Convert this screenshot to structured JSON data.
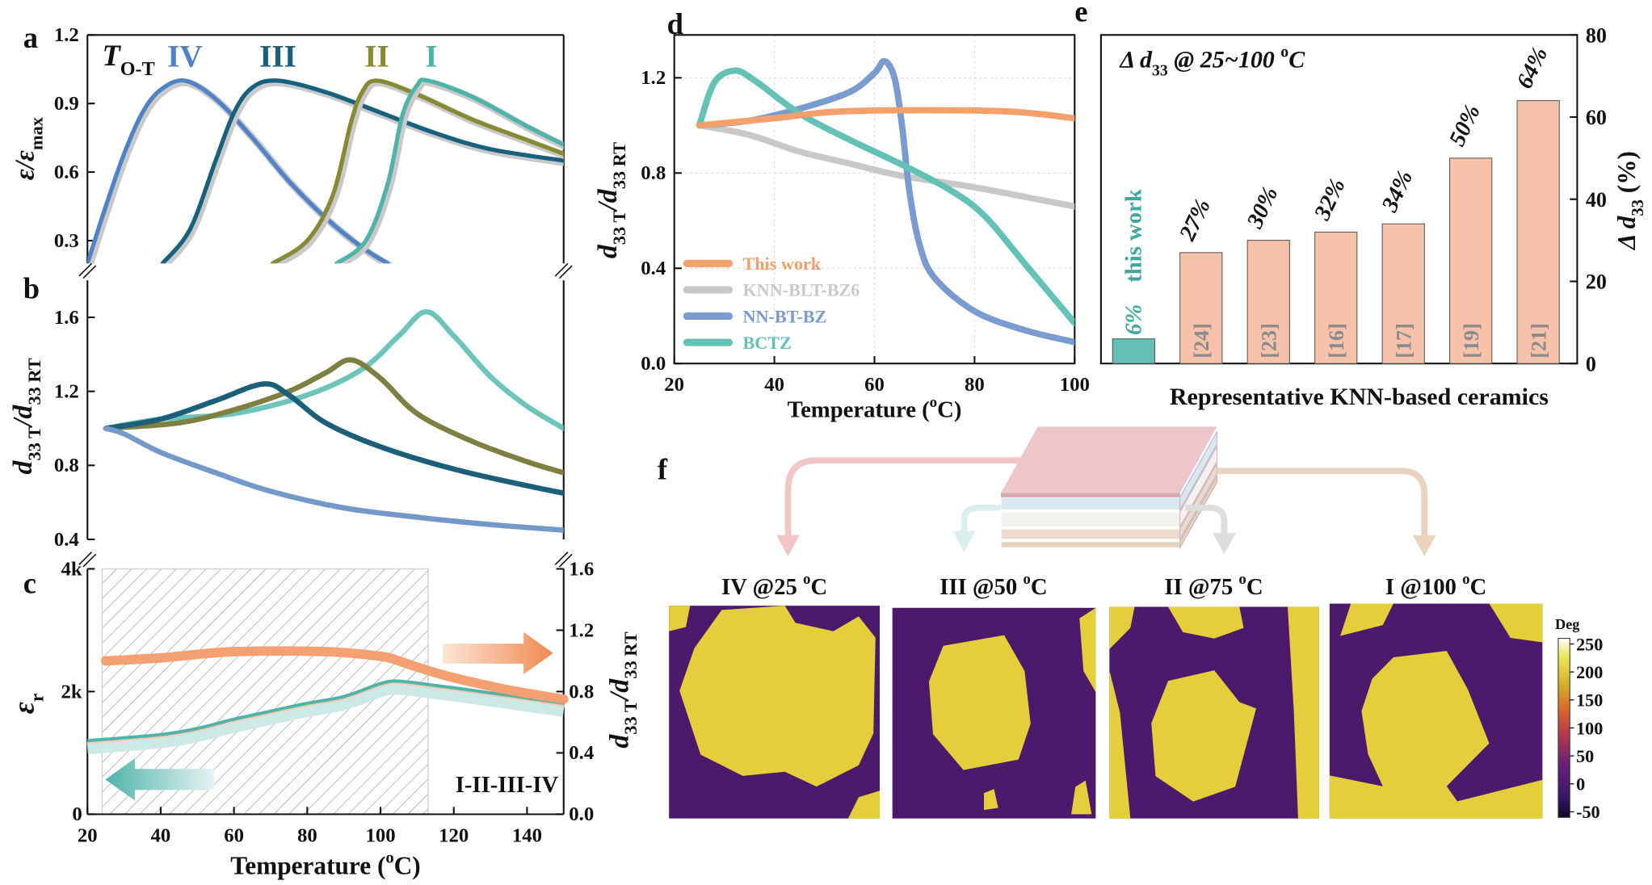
{
  "panel_letters": {
    "a": "a",
    "b": "b",
    "c": "c",
    "d": "d",
    "e": "e",
    "f": "f"
  },
  "chart_data": [
    {
      "panel": "a",
      "type": "line",
      "xlim": [
        20,
        150
      ],
      "ylim": [
        0.2,
        1.2
      ],
      "ytick_values": [
        0.3,
        0.6,
        0.9,
        1.2
      ],
      "ytick_labels": [
        "0.3",
        "0.6",
        "0.9",
        "1.2"
      ],
      "ylabel": [
        {
          "text": "ε/ε",
          "italic": true
        },
        {
          "text": "max",
          "sub": true
        }
      ],
      "annotation": [
        {
          "text": "T",
          "italic": true
        },
        {
          "text": "O-T",
          "sub": true
        }
      ],
      "series": [
        {
          "name": "IV",
          "color": "#5082c8",
          "points": [
            [
              20,
              0.2
            ],
            [
              25,
              0.45
            ],
            [
              30,
              0.68
            ],
            [
              35,
              0.86
            ],
            [
              40,
              0.96
            ],
            [
              46.6,
              1.0
            ],
            [
              55,
              0.92
            ],
            [
              65,
              0.75
            ],
            [
              75,
              0.56
            ],
            [
              85,
              0.4
            ],
            [
              95,
              0.27
            ],
            [
              102,
              0.2
            ]
          ]
        },
        {
          "name": "III",
          "color": "#17607e",
          "points": [
            [
              40.5,
              0.2
            ],
            [
              48,
              0.35
            ],
            [
              55,
              0.65
            ],
            [
              60,
              0.86
            ],
            [
              65,
              0.97
            ],
            [
              72,
              1.0
            ],
            [
              85,
              0.95
            ],
            [
              100,
              0.86
            ],
            [
              115,
              0.77
            ],
            [
              130,
              0.7
            ],
            [
              150,
              0.65
            ]
          ]
        },
        {
          "name": "II",
          "color": "#858a33",
          "points": [
            [
              70.5,
              0.2
            ],
            [
              80,
              0.3
            ],
            [
              87,
              0.5
            ],
            [
              92,
              0.82
            ],
            [
              95,
              0.95
            ],
            [
              99,
              1.0
            ],
            [
              110,
              0.94
            ],
            [
              125,
              0.83
            ],
            [
              140,
              0.74
            ],
            [
              150,
              0.68
            ]
          ]
        },
        {
          "name": "I",
          "color": "#4fb3aa",
          "points": [
            [
              88,
              0.2
            ],
            [
              96,
              0.3
            ],
            [
              102,
              0.55
            ],
            [
              106,
              0.85
            ],
            [
              110,
              0.98
            ],
            [
              113,
              1.0
            ],
            [
              125,
              0.93
            ],
            [
              140,
              0.8
            ],
            [
              150,
              0.72
            ]
          ]
        }
      ]
    },
    {
      "panel": "b",
      "type": "line",
      "xlim": [
        20,
        150
      ],
      "ylim": [
        0.4,
        1.8
      ],
      "ytick_values": [
        0.4,
        0.8,
        1.2,
        1.6
      ],
      "ytick_labels": [
        "0.4",
        "0.8",
        "1.2",
        "1.6"
      ],
      "ylabel": [
        {
          "text": "d",
          "italic": true
        },
        {
          "text": "33 T",
          "sub": true
        },
        {
          "text": "/d",
          "italic": true
        },
        {
          "text": "33 RT",
          "sub": true
        }
      ],
      "series": [
        {
          "color": "#6cc4bb",
          "points": [
            [
              25,
              1.0
            ],
            [
              40,
              1.05
            ],
            [
              60,
              1.08
            ],
            [
              80,
              1.18
            ],
            [
              95,
              1.32
            ],
            [
              105,
              1.5
            ],
            [
              112.5,
              1.63
            ],
            [
              120,
              1.5
            ],
            [
              130,
              1.28
            ],
            [
              140,
              1.12
            ],
            [
              150,
              1.0
            ]
          ]
        },
        {
          "color": "#7d8040",
          "points": [
            [
              25,
              1.0
            ],
            [
              45,
              1.03
            ],
            [
              60,
              1.1
            ],
            [
              75,
              1.2
            ],
            [
              85,
              1.3
            ],
            [
              92,
              1.37
            ],
            [
              100,
              1.27
            ],
            [
              110,
              1.08
            ],
            [
              125,
              0.93
            ],
            [
              140,
              0.82
            ],
            [
              150,
              0.76
            ]
          ]
        },
        {
          "color": "#1c5f7a",
          "points": [
            [
              25,
              1.0
            ],
            [
              40,
              1.05
            ],
            [
              55,
              1.15
            ],
            [
              68,
              1.24
            ],
            [
              75,
              1.18
            ],
            [
              85,
              1.03
            ],
            [
              100,
              0.9
            ],
            [
              120,
              0.78
            ],
            [
              140,
              0.69
            ],
            [
              150,
              0.65
            ]
          ]
        },
        {
          "color": "#7299c9",
          "points": [
            [
              25,
              1.0
            ],
            [
              30,
              0.97
            ],
            [
              40,
              0.87
            ],
            [
              55,
              0.76
            ],
            [
              70,
              0.66
            ],
            [
              90,
              0.57
            ],
            [
              110,
              0.52
            ],
            [
              130,
              0.48
            ],
            [
              150,
              0.45
            ]
          ]
        }
      ]
    },
    {
      "panel": "c",
      "type": "line",
      "xlim": [
        20,
        150
      ],
      "xtick_values": [
        20,
        40,
        60,
        80,
        100,
        120,
        140
      ],
      "xtick_labels": [
        "20",
        "40",
        "60",
        "80",
        "100",
        "120",
        "140"
      ],
      "xlabel": [
        {
          "text": "Temperature ("
        },
        {
          "text": "o",
          "sup": true
        },
        {
          "text": "C)"
        }
      ],
      "ylim_left": [
        0,
        4000
      ],
      "ytick_left_values": [
        0,
        2000,
        4000
      ],
      "ytick_left_labels": [
        "0",
        "2k",
        "4k"
      ],
      "ylabel_left": [
        {
          "text": "ε",
          "italic": true
        },
        {
          "text": "r",
          "sub": true
        }
      ],
      "ylim_right": [
        0,
        1.6
      ],
      "ytick_right_values": [
        0.0,
        0.4,
        0.8,
        1.2,
        1.6
      ],
      "ytick_right_labels": [
        "0.0",
        "0.4",
        "0.8",
        "1.2",
        "1.6"
      ],
      "ylabel_right": [
        {
          "text": "d",
          "italic": true
        },
        {
          "text": "33 T",
          "sub": true
        },
        {
          "text": "/d",
          "italic": true
        },
        {
          "text": "33 RT",
          "sub": true
        }
      ],
      "shaded_range": [
        24,
        113
      ],
      "annotation": "I-II-III-IV",
      "series": [
        {
          "axis": "left",
          "color": "#4fb3aa",
          "points": [
            [
              20,
              1200
            ],
            [
              40,
              1300
            ],
            [
              50,
              1400
            ],
            [
              60,
              1550
            ],
            [
              70,
              1680
            ],
            [
              80,
              1810
            ],
            [
              90,
              1920
            ],
            [
              100,
              2130
            ],
            [
              105,
              2170
            ],
            [
              115,
              2100
            ],
            [
              130,
              1980
            ],
            [
              150,
              1810
            ]
          ]
        },
        {
          "axis": "right",
          "color": "#f4a070",
          "points": [
            [
              25,
              1.0
            ],
            [
              40,
              1.02
            ],
            [
              60,
              1.06
            ],
            [
              85,
              1.06
            ],
            [
              100,
              1.03
            ],
            [
              105,
              1.0
            ],
            [
              110,
              0.96
            ],
            [
              120,
              0.89
            ],
            [
              135,
              0.81
            ],
            [
              150,
              0.75
            ]
          ]
        }
      ],
      "arrow_colors": {
        "left": "#4fb3aa",
        "right": "#f08a4e"
      }
    },
    {
      "panel": "d",
      "type": "line",
      "xlim": [
        20,
        100
      ],
      "ylim": [
        0,
        1.38
      ],
      "xtick_values": [
        20,
        40,
        60,
        80,
        100
      ],
      "xtick_labels": [
        "20",
        "40",
        "60",
        "80",
        "100"
      ],
      "ytick_values": [
        0.0,
        0.4,
        0.8,
        1.2
      ],
      "ytick_labels": [
        "0.0",
        "0.4",
        "0.8",
        "1.2"
      ],
      "xlabel": [
        {
          "text": "Temperature ("
        },
        {
          "text": "o",
          "sup": true
        },
        {
          "text": "C)"
        }
      ],
      "ylabel": [
        {
          "text": "d",
          "italic": true
        },
        {
          "text": "33 T",
          "sub": true
        },
        {
          "text": "/d",
          "italic": true
        },
        {
          "text": "33 RT",
          "sub": true
        }
      ],
      "grid": true,
      "legend": "bottom-left",
      "series": [
        {
          "name": "This work",
          "color": "#f4a06a",
          "points": [
            [
              25,
              1.0
            ],
            [
              40,
              1.03
            ],
            [
              55,
              1.06
            ],
            [
              85,
              1.06
            ],
            [
              100,
              1.03
            ]
          ]
        },
        {
          "name": "KNN-BLT-BZ6",
          "color": "#c8c8c8",
          "points": [
            [
              25,
              1.0
            ],
            [
              35,
              0.96
            ],
            [
              45,
              0.89
            ],
            [
              55,
              0.84
            ],
            [
              65,
              0.79
            ],
            [
              80,
              0.74
            ],
            [
              90,
              0.7
            ],
            [
              100,
              0.66
            ]
          ]
        },
        {
          "name": "NN-BT-BZ",
          "color": "#7a9bd0",
          "points": [
            [
              25,
              1.0
            ],
            [
              35,
              1.02
            ],
            [
              45,
              1.07
            ],
            [
              55,
              1.14
            ],
            [
              60,
              1.22
            ],
            [
              62,
              1.27
            ],
            [
              64,
              1.2
            ],
            [
              65.5,
              1.0
            ],
            [
              67,
              0.72
            ],
            [
              69,
              0.5
            ],
            [
              72,
              0.36
            ],
            [
              80,
              0.22
            ],
            [
              90,
              0.14
            ],
            [
              100,
              0.09
            ]
          ]
        },
        {
          "name": "BCTZ",
          "color": "#63c1b6",
          "points": [
            [
              25,
              1.0
            ],
            [
              28,
              1.18
            ],
            [
              32,
              1.23
            ],
            [
              36,
              1.19
            ],
            [
              45,
              1.05
            ],
            [
              55,
              0.94
            ],
            [
              65,
              0.84
            ],
            [
              75,
              0.73
            ],
            [
              82,
              0.62
            ],
            [
              90,
              0.42
            ],
            [
              100,
              0.17
            ]
          ]
        }
      ]
    },
    {
      "panel": "e",
      "type": "bar",
      "title": [
        {
          "text": "Δ d",
          "italic": true
        },
        {
          "text": "33",
          "sub": true
        },
        {
          "text": " @ 25~100 ",
          "italic": true
        },
        {
          "text": "o",
          "sup": true
        },
        {
          "text": "C",
          "italic": true
        }
      ],
      "categories": [
        "this work",
        "[24]",
        "[23]",
        "[16]",
        "[17]",
        "[19]",
        "[21]"
      ],
      "values": [
        6,
        27,
        30,
        32,
        34,
        50,
        64
      ],
      "value_labels": [
        "6%",
        "27%",
        "30%",
        "32%",
        "34%",
        "50%",
        "64%"
      ],
      "bar_colors": [
        "#63c1b6",
        "#f6c3aa",
        "#f6c3aa",
        "#f6c3aa",
        "#f6c3aa",
        "#f6c3aa",
        "#f6c3aa"
      ],
      "highlight_color": "#3fa79c",
      "ylim": [
        0,
        80
      ],
      "ytick_values": [
        0,
        20,
        40,
        60,
        80
      ],
      "ytick_labels": [
        "0",
        "20",
        "40",
        "60",
        "80"
      ],
      "yaxis_side": "right",
      "xlabel": "Representative KNN-based ceramics",
      "ylabel": [
        {
          "text": "Δ d",
          "italic": true
        },
        {
          "text": "33",
          "sub": true
        },
        {
          "text": " (%)"
        }
      ]
    }
  ],
  "panel_f": {
    "images": [
      {
        "label": [
          {
            "text": "IV @25 "
          },
          {
            "text": "o",
            "sup": true
          },
          {
            "text": "C"
          }
        ]
      },
      {
        "label": [
          {
            "text": "III @50 "
          },
          {
            "text": "o",
            "sup": true
          },
          {
            "text": "C"
          }
        ]
      },
      {
        "label": [
          {
            "text": "II @75 "
          },
          {
            "text": "o",
            "sup": true
          },
          {
            "text": "C"
          }
        ]
      },
      {
        "label": [
          {
            "text": "I @100 "
          },
          {
            "text": "o",
            "sup": true
          },
          {
            "text": "C"
          }
        ]
      }
    ],
    "colorbar": {
      "title": "Deg",
      "range": [
        -60,
        260
      ],
      "tick_values": [
        250,
        200,
        150,
        100,
        50,
        0,
        -50
      ],
      "tick_labels": [
        "250",
        "200",
        "150",
        "100",
        "50",
        "0",
        "-50"
      ]
    },
    "arrow_colors": [
      "#f2c6c6",
      "#dcefef",
      "#dddddd",
      "#e9d3bf"
    ],
    "map_colors": {
      "low": "#4b1a6b",
      "high": "#e3cf3a"
    }
  }
}
